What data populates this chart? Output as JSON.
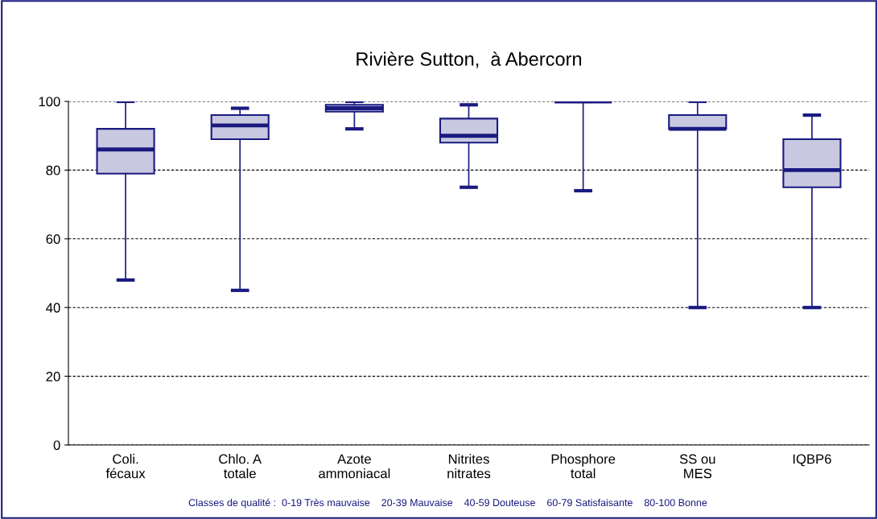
{
  "chart_data": {
    "type": "box",
    "title": "Rivière Sutton,  à Abercorn",
    "categories": [
      "Coli.\nfécaux",
      "Chlo. A\ntotale",
      "Azote\nammoniacal",
      "Nitrites\nnitrates",
      "Phosphore\ntotal",
      "SS ou\nMES",
      "IQBP6"
    ],
    "color": "#1a1a80",
    "boxes": [
      {
        "low": 48,
        "q1": 79,
        "median": 86,
        "q3": 92,
        "high": 100
      },
      {
        "low": 45,
        "q1": 89,
        "median": 93,
        "q3": 96,
        "high": 98
      },
      {
        "low": 92,
        "q1": 97,
        "median": 98,
        "q3": 99,
        "high": 100
      },
      {
        "low": 75,
        "q1": 88,
        "median": 90,
        "q3": 95,
        "high": 99
      },
      {
        "low": 74,
        "q1": 100,
        "median": 100,
        "q3": 100,
        "high": 100
      },
      {
        "low": 40,
        "q1": 92,
        "median": 92,
        "q3": 96,
        "high": 100
      },
      {
        "low": 40,
        "q1": 75,
        "median": 80,
        "q3": 89,
        "high": 96
      }
    ],
    "ylim": [
      0,
      100
    ],
    "yticks": [
      0,
      20,
      40,
      60,
      80,
      100
    ],
    "grid": "y",
    "annotations": [
      "Classes de qualité :  0-19 Très mauvaise    20-39 Mauvaise    40-59 Douteuse    60-79 Satisfaisante    80-100 Bonne"
    ]
  }
}
